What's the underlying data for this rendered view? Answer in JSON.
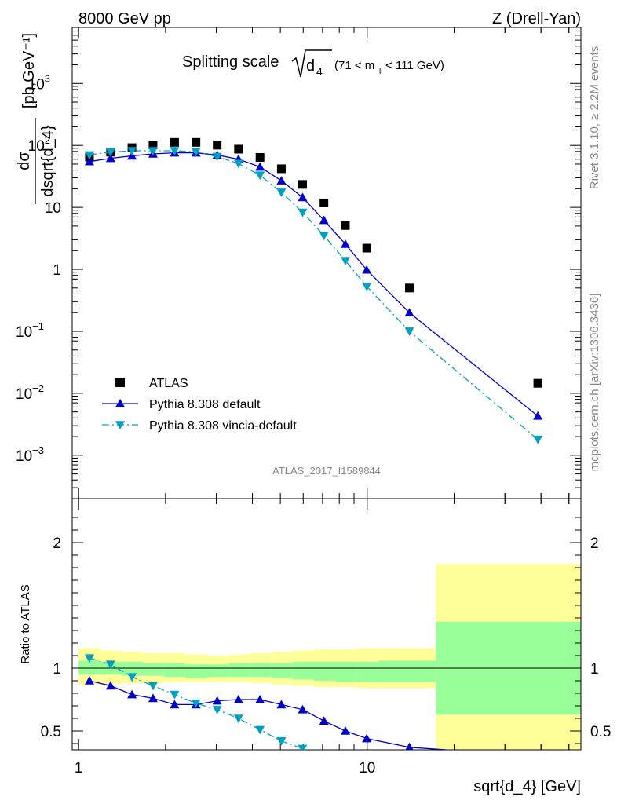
{
  "header": {
    "left": "8000 GeV pp",
    "right": "Z (Drell-Yan)"
  },
  "side_labels": {
    "rivet": "Rivet 3.1.10, ≥ 2.2M events",
    "mcplots": "mcplots.cern.ch [arXiv:1306.3436]"
  },
  "main": {
    "title": "Splitting scale",
    "title_symbol": "d",
    "title_subscript": "4",
    "title_range_prefix": "(71 < m",
    "title_range_sub": "ll",
    "title_range_suffix": " < 111 GeV)",
    "analysis_id": "ATLAS_2017_I1589844",
    "ylabel_num": "dσ",
    "ylabel_den": "dsqrt{d_4}",
    "ylabel_unit": "[pb,GeV⁻¹]"
  },
  "ratio": {
    "ylabel": "Ratio to ATLAS"
  },
  "xlabel": "sqrt{d_4} [GeV]",
  "legend": [
    {
      "label": "ATLAS",
      "marker": "square",
      "color": "#000000"
    },
    {
      "label": "Pythia 8.308 default",
      "marker": "triangle-up",
      "color": "#0000cc"
    },
    {
      "label": "Pythia 8.308 vincia-default",
      "marker": "triangle-down",
      "color": "#00a0c0"
    }
  ],
  "chart_data": {
    "type": "scatter",
    "x_scale": "log",
    "y_scale_main": "log",
    "xlim": [
      0.95,
      55
    ],
    "ylim_main": [
      0.0002,
      8000
    ],
    "ylim_ratio": [
      0.35,
      2.35
    ],
    "xticks": [
      {
        "v": 1,
        "label": "1"
      },
      {
        "v": 10,
        "label": "10"
      }
    ],
    "yticks_main": [
      {
        "v": 0.001,
        "base": "10",
        "exp": "−3"
      },
      {
        "v": 0.01,
        "base": "10",
        "exp": "−2"
      },
      {
        "v": 0.1,
        "base": "10",
        "exp": "−1"
      },
      {
        "v": 1,
        "base": "1",
        "exp": ""
      },
      {
        "v": 10,
        "base": "10",
        "exp": ""
      },
      {
        "v": 100,
        "base": "10",
        "exp": "2"
      },
      {
        "v": 1000,
        "base": "10",
        "exp": "3"
      }
    ],
    "yticks_ratio": [
      {
        "v": 0.5,
        "label": "0.5"
      },
      {
        "v": 1,
        "label": "1"
      },
      {
        "v": 2,
        "label": "2"
      }
    ],
    "x": [
      1.09,
      1.29,
      1.53,
      1.81,
      2.15,
      2.55,
      3.02,
      3.58,
      4.25,
      5.04,
      5.97,
      7.08,
      8.4,
      9.96,
      14.0,
      39.0
    ],
    "bin_edges": [
      1.0,
      1.19,
      1.41,
      1.67,
      1.98,
      2.35,
      2.79,
      3.31,
      3.92,
      4.65,
      5.51,
      6.54,
      7.75,
      9.19,
      10.9,
      17.3,
      55.0
    ],
    "series": [
      {
        "name": "ATLAS",
        "color": "#000000",
        "marker": "square",
        "values": [
          65,
          78,
          92,
          102,
          112,
          112,
          101,
          87,
          64,
          42,
          23.5,
          11.8,
          5.1,
          2.2,
          0.5,
          0.0145
        ]
      },
      {
        "name": "Pythia 8.308 default",
        "color": "#0000cc",
        "marker": "triangle-up",
        "values": [
          55,
          62,
          68,
          73,
          76,
          76,
          70,
          60,
          45,
          27,
          14.5,
          6.2,
          2.55,
          0.98,
          0.2,
          0.0043
        ],
        "ratio": [
          0.9,
          0.86,
          0.79,
          0.76,
          0.71,
          0.71,
          0.74,
          0.75,
          0.75,
          0.71,
          0.67,
          0.58,
          0.5,
          0.44,
          0.37,
          0.3
        ]
      },
      {
        "name": "Pythia 8.308 vincia-default",
        "color": "#00a0c0",
        "marker": "triangle-down",
        "values": [
          70,
          78,
          82,
          82,
          82,
          79,
          66,
          51,
          33,
          17.5,
          8.3,
          3.5,
          1.38,
          0.53,
          0.1,
          0.0018
        ],
        "ratio": [
          1.08,
          1.03,
          0.93,
          0.86,
          0.79,
          0.72,
          0.67,
          0.6,
          0.51,
          0.42,
          0.36,
          0.3,
          0.27,
          0.24,
          0.2,
          0.12
        ]
      }
    ],
    "ratio_bands": {
      "inner_color": "#99ff99",
      "outer_color": "#ffff99",
      "inner": [
        [
          0.95,
          1.06
        ],
        [
          0.95,
          1.05
        ],
        [
          0.94,
          1.05
        ],
        [
          0.94,
          1.04
        ],
        [
          0.93,
          1.04
        ],
        [
          0.92,
          1.03
        ],
        [
          0.93,
          1.03
        ],
        [
          0.93,
          1.04
        ],
        [
          0.93,
          1.04
        ],
        [
          0.92,
          1.04
        ],
        [
          0.91,
          1.05
        ],
        [
          0.9,
          1.05
        ],
        [
          0.89,
          1.05
        ],
        [
          0.89,
          1.05
        ],
        [
          0.89,
          1.06
        ],
        [
          0.63,
          1.37
        ]
      ],
      "outer": [
        [
          0.87,
          1.16
        ],
        [
          0.87,
          1.14
        ],
        [
          0.88,
          1.13
        ],
        [
          0.88,
          1.12
        ],
        [
          0.89,
          1.12
        ],
        [
          0.89,
          1.11
        ],
        [
          0.89,
          1.1
        ],
        [
          0.89,
          1.11
        ],
        [
          0.88,
          1.12
        ],
        [
          0.87,
          1.13
        ],
        [
          0.86,
          1.14
        ],
        [
          0.85,
          1.15
        ],
        [
          0.85,
          1.15
        ],
        [
          0.84,
          1.16
        ],
        [
          0.84,
          1.16
        ],
        [
          0.35,
          1.83
        ]
      ]
    }
  }
}
